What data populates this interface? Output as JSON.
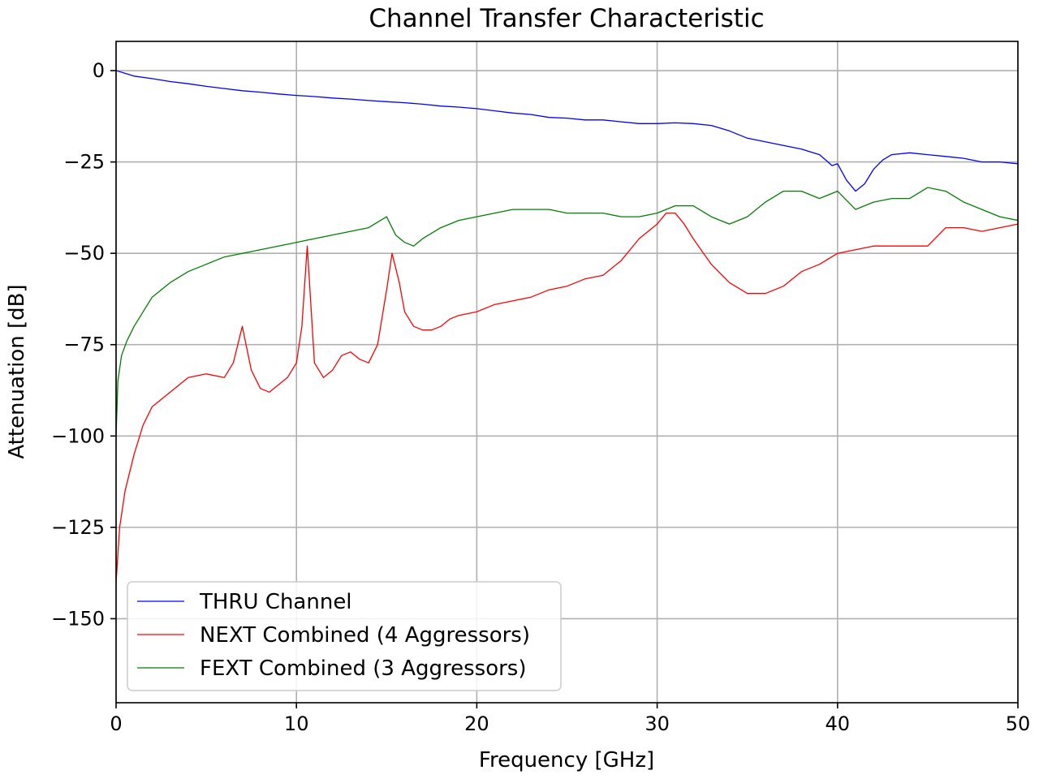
{
  "chart_data": {
    "type": "line",
    "title": "Channel Transfer Characteristic",
    "xlabel": "Frequency [GHz]",
    "ylabel": "Attenuation [dB]",
    "xlim": [
      0,
      50
    ],
    "ylim": [
      -173,
      8
    ],
    "xticks": [
      0,
      10,
      20,
      30,
      40,
      50
    ],
    "xtick_labels": [
      "0",
      "10",
      "20",
      "30",
      "40",
      "50"
    ],
    "yticks": [
      0,
      -25,
      -50,
      -75,
      -100,
      -125,
      -150
    ],
    "ytick_labels": [
      "0",
      "−25",
      "−50",
      "−75",
      "−100",
      "−125",
      "−150"
    ],
    "grid": true,
    "legend_position": "lower-left",
    "series": [
      {
        "name": "THRU Channel",
        "color": "#0000ff",
        "x": [
          0,
          1,
          2,
          3,
          4,
          5,
          6,
          7,
          8,
          9,
          10,
          11,
          12,
          13,
          14,
          15,
          16,
          17,
          18,
          19,
          20,
          21,
          22,
          23,
          24,
          25,
          26,
          27,
          28,
          29,
          30,
          31,
          32,
          33,
          34,
          35,
          36,
          37,
          38,
          39,
          39.7,
          40,
          40.5,
          41,
          41.5,
          42,
          42.5,
          43,
          44,
          45,
          46,
          47,
          48,
          49,
          50
        ],
        "y": [
          0,
          -1.5,
          -2.2,
          -3.0,
          -3.6,
          -4.3,
          -4.9,
          -5.5,
          -5.9,
          -6.4,
          -6.8,
          -7.1,
          -7.5,
          -7.8,
          -8.2,
          -8.5,
          -8.8,
          -9.2,
          -9.7,
          -10.0,
          -10.4,
          -11.0,
          -11.6,
          -12.0,
          -12.8,
          -13.0,
          -13.5,
          -13.5,
          -14.0,
          -14.5,
          -14.5,
          -14.3,
          -14.5,
          -15.0,
          -16.5,
          -18.5,
          -19.5,
          -20.5,
          -21.5,
          -23.0,
          -26.0,
          -25.5,
          -30.0,
          -33.0,
          -31.0,
          -27.0,
          -24.5,
          -23.0,
          -22.5,
          -23.0,
          -23.5,
          -24.0,
          -25.0,
          -25.0,
          -25.5
        ]
      },
      {
        "name": "NEXT Combined (4 Aggressors)",
        "color": "#ff0000",
        "x": [
          0,
          0.2,
          0.5,
          1,
          1.5,
          2,
          3,
          4,
          5,
          6,
          6.5,
          7,
          7.5,
          8,
          8.5,
          9,
          9.5,
          10,
          10.3,
          10.6,
          11,
          11.5,
          12,
          12.5,
          13,
          13.5,
          14,
          14.5,
          15,
          15.3,
          15.7,
          16,
          16.5,
          17,
          17.5,
          18,
          18.5,
          19,
          20,
          21,
          22,
          23,
          24,
          25,
          26,
          27,
          28,
          29,
          30,
          30.5,
          31,
          31.5,
          32,
          33,
          34,
          35,
          36,
          37,
          38,
          39,
          40,
          41,
          42,
          43,
          44,
          45,
          46,
          47,
          48,
          49,
          50
        ],
        "y": [
          -140,
          -125,
          -115,
          -105,
          -97,
          -92,
          -88,
          -84,
          -83,
          -84,
          -80,
          -70,
          -82,
          -87,
          -88,
          -86,
          -84,
          -80,
          -70,
          -48,
          -80,
          -84,
          -82,
          -78,
          -77,
          -79,
          -80,
          -75,
          -60,
          -50,
          -58,
          -66,
          -70,
          -71,
          -71,
          -70,
          -68,
          -67,
          -66,
          -64,
          -63,
          -62,
          -60,
          -59,
          -57,
          -56,
          -52,
          -46,
          -42,
          -39,
          -39,
          -42,
          -46,
          -53,
          -58,
          -61,
          -61,
          -59,
          -55,
          -53,
          -50,
          -49,
          -48,
          -48,
          -48,
          -48,
          -43,
          -43,
          -44,
          -43,
          -42
        ]
      },
      {
        "name": "FEXT Combined (3 Aggressors)",
        "color": "#008000",
        "x": [
          0,
          0.1,
          0.3,
          0.6,
          1,
          1.5,
          2,
          3,
          4,
          5,
          6,
          7,
          8,
          9,
          10,
          11,
          12,
          13,
          14,
          15,
          15.5,
          16,
          16.5,
          17,
          18,
          19,
          20,
          21,
          22,
          23,
          24,
          25,
          26,
          27,
          28,
          29,
          30,
          31,
          32,
          33,
          34,
          35,
          36,
          37,
          38,
          39,
          40,
          41,
          42,
          43,
          44,
          45,
          46,
          47,
          48,
          49,
          50
        ],
        "y": [
          -100,
          -85,
          -78,
          -74,
          -70,
          -66,
          -62,
          -58,
          -55,
          -53,
          -51,
          -50,
          -49,
          -48,
          -47,
          -46,
          -45,
          -44,
          -43,
          -40,
          -45,
          -47,
          -48,
          -46,
          -43,
          -41,
          -40,
          -39,
          -38,
          -38,
          -38,
          -39,
          -39,
          -39,
          -40,
          -40,
          -39,
          -37,
          -37,
          -40,
          -42,
          -40,
          -36,
          -33,
          -33,
          -35,
          -33,
          -38,
          -36,
          -35,
          -35,
          -32,
          -33,
          -36,
          -38,
          -40,
          -41
        ]
      }
    ]
  }
}
